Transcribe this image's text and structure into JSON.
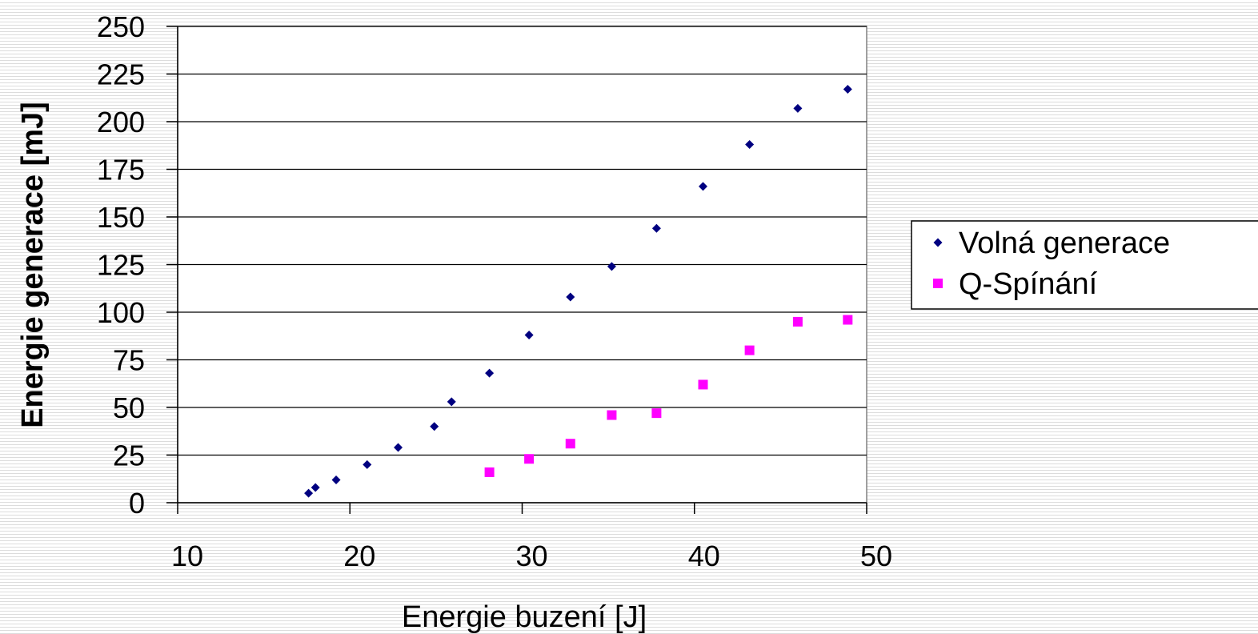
{
  "chart_data": {
    "type": "scatter",
    "xlabel": "Energie buzení [J]",
    "ylabel": "Energie generace [mJ]",
    "xlim": [
      10,
      50
    ],
    "ylim": [
      0,
      250
    ],
    "x_ticks": [
      10,
      20,
      30,
      40,
      50
    ],
    "y_ticks": [
      0,
      25,
      50,
      75,
      100,
      125,
      150,
      175,
      200,
      225,
      250
    ],
    "grid": "horizontal",
    "legend_position": "right",
    "series": [
      {
        "name": "Volná generace",
        "marker": "diamond",
        "color": "#000080",
        "points": [
          {
            "x": 17.6,
            "y": 5
          },
          {
            "x": 18.0,
            "y": 8
          },
          {
            "x": 19.2,
            "y": 12
          },
          {
            "x": 21.0,
            "y": 20
          },
          {
            "x": 22.8,
            "y": 29
          },
          {
            "x": 24.9,
            "y": 40
          },
          {
            "x": 25.9,
            "y": 53
          },
          {
            "x": 28.1,
            "y": 68
          },
          {
            "x": 30.4,
            "y": 88
          },
          {
            "x": 32.8,
            "y": 108
          },
          {
            "x": 35.2,
            "y": 124
          },
          {
            "x": 37.8,
            "y": 144
          },
          {
            "x": 40.5,
            "y": 166
          },
          {
            "x": 43.2,
            "y": 188
          },
          {
            "x": 46.0,
            "y": 207
          },
          {
            "x": 48.9,
            "y": 217
          }
        ]
      },
      {
        "name": "Q-Spínání",
        "marker": "square",
        "color": "#ff00ff",
        "points": [
          {
            "x": 28.1,
            "y": 16
          },
          {
            "x": 30.4,
            "y": 23
          },
          {
            "x": 32.8,
            "y": 31
          },
          {
            "x": 35.2,
            "y": 46
          },
          {
            "x": 37.8,
            "y": 47
          },
          {
            "x": 40.5,
            "y": 62
          },
          {
            "x": 43.2,
            "y": 80
          },
          {
            "x": 46.0,
            "y": 95
          },
          {
            "x": 48.9,
            "y": 96
          }
        ]
      }
    ]
  }
}
